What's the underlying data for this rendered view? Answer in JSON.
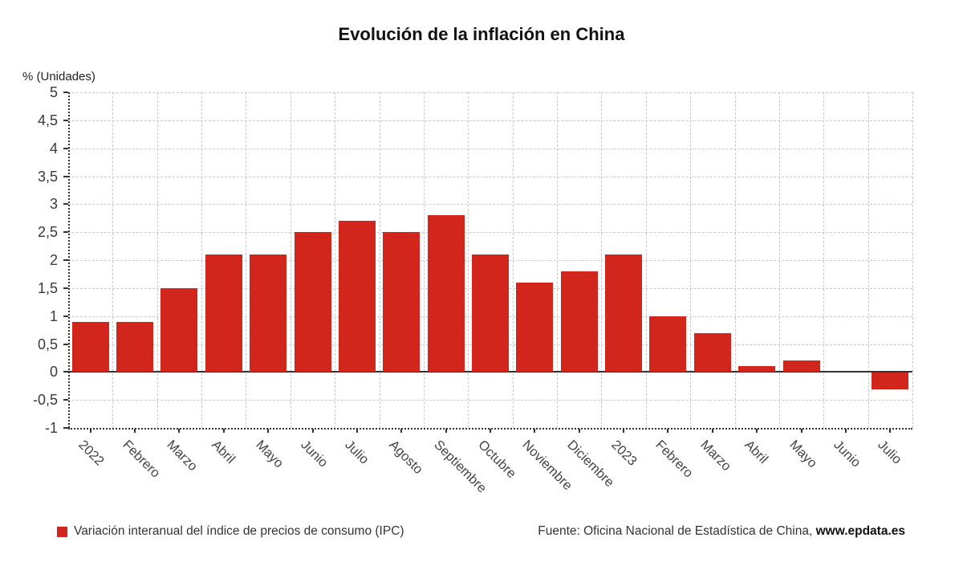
{
  "title": "Evolución de la inflación en China",
  "y_axis_title": "% (Unidades)",
  "legend": {
    "label": "Variación interanual del índice de precios de consumo (IPC)"
  },
  "source": {
    "prefix": "Fuente: Oficina Nacional de Estadística de China, ",
    "site": "www.epdata.es"
  },
  "colors": {
    "bar": "#d2251b",
    "grid": "#c9c9c9",
    "axis": "#333333",
    "text": "#444444"
  },
  "chart_data": {
    "type": "bar",
    "title": "Evolución de la inflación en China",
    "ylabel": "% (Unidades)",
    "xlabel": "",
    "series_name": "Variación interanual del índice de precios de consumo (IPC)",
    "categories": [
      "2022",
      "Febrero",
      "Marzo",
      "Abril",
      "Mayo",
      "Junio",
      "Julio",
      "Agosto",
      "Septiembre",
      "Octubre",
      "Noviembre",
      "Diciembre",
      "2023",
      "Febrero",
      "Marzo",
      "Abril",
      "Mayo",
      "Junio",
      "Julio"
    ],
    "values": [
      0.9,
      0.9,
      1.5,
      2.1,
      2.1,
      2.5,
      2.7,
      2.5,
      2.8,
      2.1,
      1.6,
      1.8,
      2.1,
      1.0,
      0.7,
      0.1,
      0.2,
      0.0,
      -0.3
    ],
    "bar_color": "#d2251b",
    "ylim": [
      -1,
      5
    ],
    "ytick_values": [
      5,
      4.5,
      4,
      3.5,
      3,
      2.5,
      2,
      1.5,
      1,
      0.5,
      0,
      -0.5,
      -1
    ],
    "ytick_labels": [
      "5",
      "4,5",
      "4",
      "3,5",
      "3",
      "2,5",
      "2",
      "1,5",
      "1",
      "0,5",
      "0",
      "-0,5",
      "-1"
    ],
    "grid": true,
    "legend_position": "bottom-left",
    "decimal_separator": ","
  }
}
